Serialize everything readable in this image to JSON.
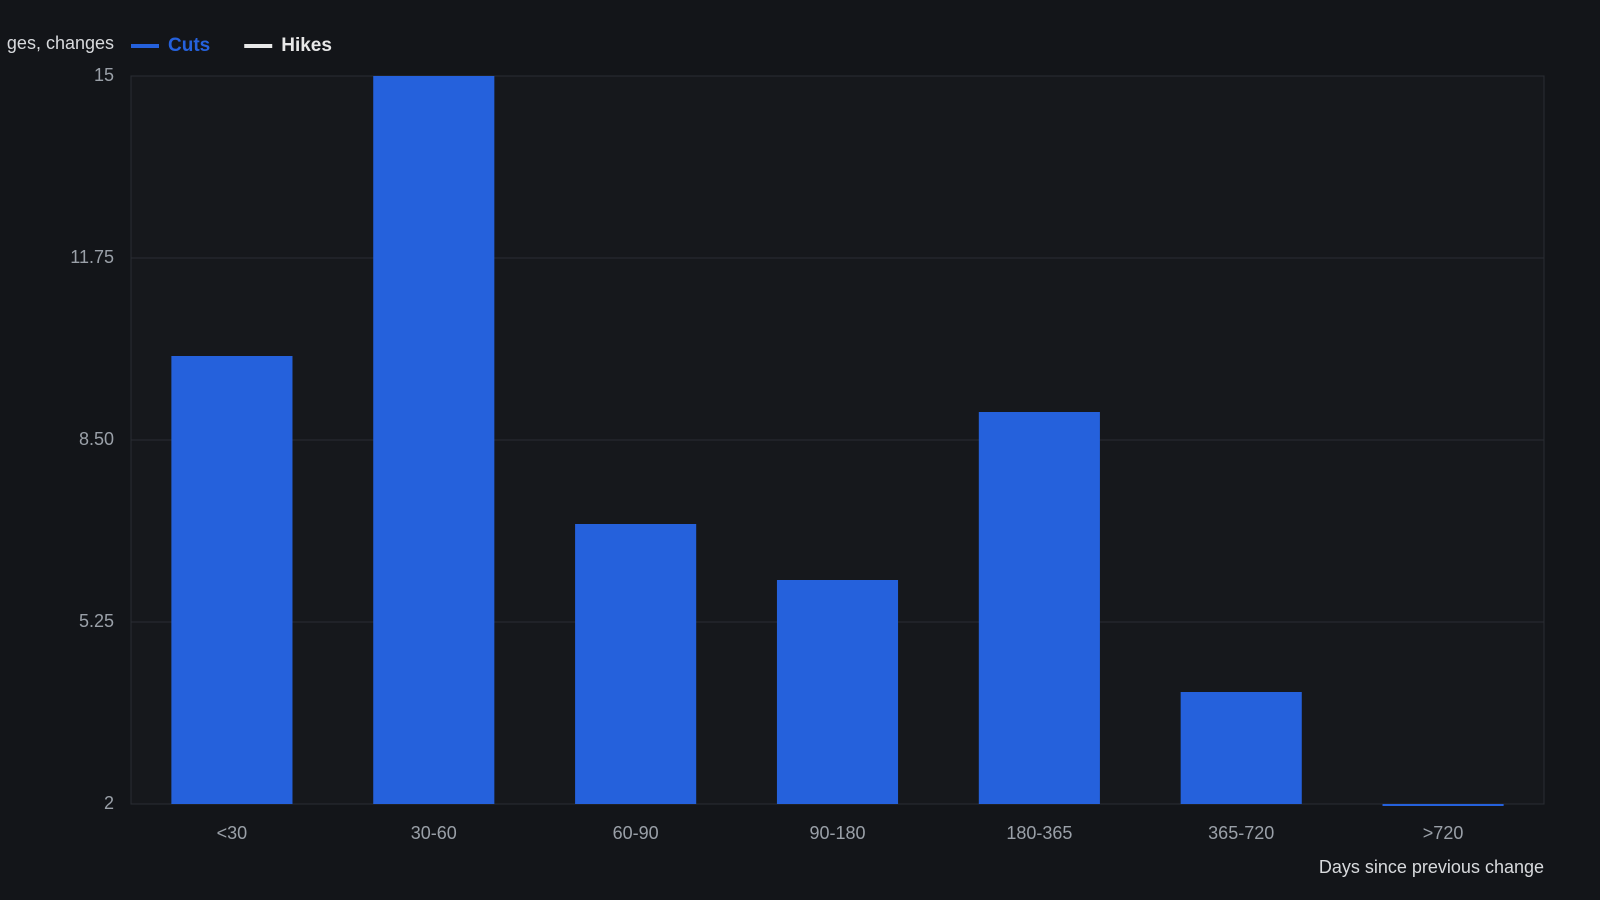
{
  "chart_data": {
    "type": "bar",
    "y_label": "ges, changes",
    "x_label": "Days since previous change",
    "categories": [
      "<30",
      "30-60",
      "60-90",
      "90-180",
      "180-365",
      "365-720",
      ">720"
    ],
    "series": [
      {
        "name": "Cuts",
        "color": "#2561dc",
        "values": [
          10,
          15,
          7,
          6,
          9,
          4,
          2
        ]
      },
      {
        "name": "Hikes",
        "color": "#e8e8e8",
        "values": [
          null,
          null,
          null,
          null,
          null,
          null,
          null
        ]
      }
    ],
    "ylim": [
      2,
      15
    ],
    "yticks": [
      2,
      5.25,
      {
        "value": 8.5,
        "label": "8.50"
      },
      11.75,
      15
    ],
    "grid": true
  }
}
